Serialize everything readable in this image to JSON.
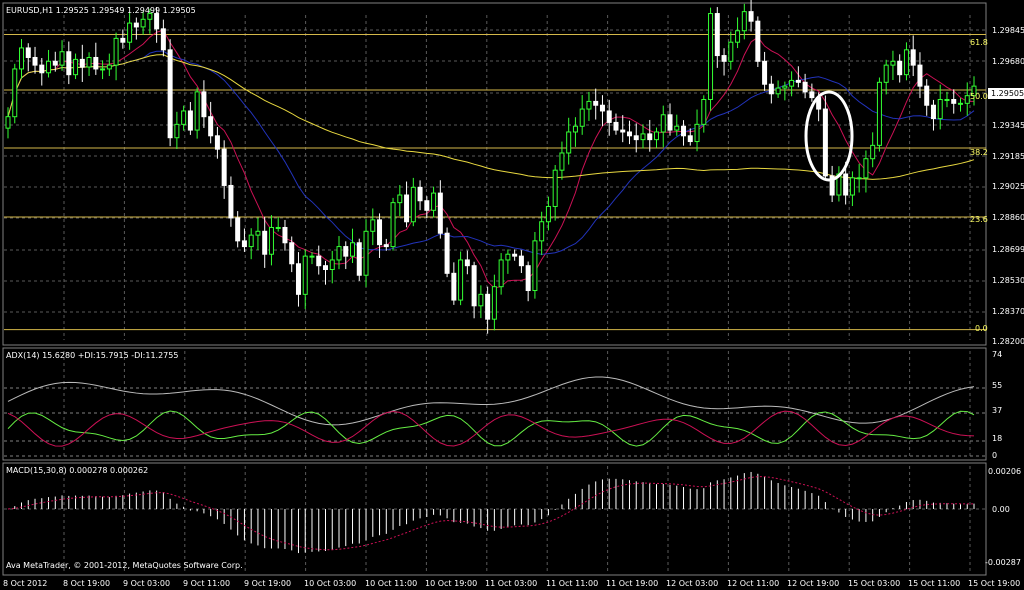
{
  "colors": {
    "background": "#000000",
    "grid": "#5a5a5a",
    "bull_candle": "#33ff33",
    "bear_candle": "#ffffff",
    "fib": "#d4b84a",
    "ma_fast": "#cc1155",
    "ma_mid": "#2233bb",
    "ma_slow": "#e8d840",
    "adx_main": "#bbbbbb",
    "plus_di": "#66ee44",
    "minus_di": "#cc1155",
    "adx_levels": "#808080",
    "macd_hist": "#ffffff",
    "macd_signal": "#cc1155",
    "marker": "#ffffff"
  },
  "main": {
    "header": "EURUSD,H1  1.29525 1.29549 1.29499 1.29505",
    "current_price": "1.29505",
    "price_labels": [
      "1.29845",
      "1.29680",
      "1.29505",
      "1.29345",
      "1.29185",
      "1.29025",
      "1.28860",
      "1.28699",
      "1.28530",
      "1.28370",
      "1.28200"
    ],
    "fib_labels": [
      {
        "label": "61.8",
        "price": 1.2978
      },
      {
        "label": "50.0",
        "price": 1.2949
      },
      {
        "label": "38.2",
        "price": 1.29186
      },
      {
        "label": "23.6",
        "price": 1.28825
      },
      {
        "label": "0.0",
        "price": 1.28235
      }
    ]
  },
  "adx": {
    "header": "ADX(14) 15.6280 +DI:15.7915 -DI:11.2755",
    "levels": [
      "74",
      "55",
      "37",
      "18",
      "0"
    ]
  },
  "macd": {
    "header": "MACD(15,30,8) 0.000278 0.000262",
    "levels": [
      "0.00206",
      "0.00",
      "-0.00287"
    ]
  },
  "time_labels": [
    "8 Oct 2012",
    "8 Oct 19:00",
    "9 Oct 03:00",
    "9 Oct 11:00",
    "9 Oct 19:00",
    "10 Oct 03:00",
    "10 Oct 11:00",
    "10 Oct 19:00",
    "11 Oct 03:00",
    "11 Oct 11:00",
    "11 Oct 19:00",
    "12 Oct 03:00",
    "12 Oct 11:00",
    "12 Oct 19:00",
    "15 Oct 03:00",
    "15 Oct 11:00",
    "15 Oct 19:00"
  ],
  "watermark": "Ava MetaTrader, © 2001-2012, MetaQuotes Software Corp.",
  "chart_data": {
    "type": "candlestick",
    "symbol": "EURUSD",
    "timeframe": "H1",
    "ylim": [
      1.2816,
      1.2994
    ],
    "closes": [
      1.2935,
      1.296,
      1.2971,
      1.2966,
      1.2962,
      1.2958,
      1.2964,
      1.2962,
      1.2969,
      1.2957,
      1.2965,
      1.2961,
      1.2966,
      1.296,
      1.296,
      1.2962,
      1.2976,
      1.2974,
      1.2984,
      1.2982,
      1.2986,
      1.2989,
      1.2981,
      1.297,
      1.2924,
      1.2931,
      1.2938,
      1.2928,
      1.2948,
      1.2935,
      1.2925,
      1.2918,
      1.2899,
      1.2882,
      1.287,
      1.2867,
      1.2873,
      1.2875,
      1.2863,
      1.2877,
      1.2877,
      1.2869,
      1.2858,
      1.2842,
      1.2862,
      1.2862,
      1.2857,
      1.2855,
      1.286,
      1.2867,
      1.2862,
      1.2869,
      1.2852,
      1.2875,
      1.2881,
      1.2868,
      1.2867,
      1.289,
      1.2894,
      1.288,
      1.2898,
      1.2891,
      1.2886,
      1.2895,
      1.2874,
      1.2853,
      1.2839,
      1.286,
      1.2857,
      1.2836,
      1.2842,
      1.2829,
      1.2846,
      1.286,
      1.2863,
      1.2862,
      1.2857,
      1.2844,
      1.287,
      1.288,
      1.2888,
      1.2907,
      1.2916,
      1.2927,
      1.293,
      1.2939,
      1.2943,
      1.2941,
      1.2938,
      1.2932,
      1.2928,
      1.2927,
      1.2925,
      1.2923,
      1.2926,
      1.2923,
      1.2927,
      1.2936,
      1.2928,
      1.293,
      1.2925,
      1.2922,
      1.2931,
      1.2944,
      1.2989,
      1.2967,
      1.2964,
      1.2974,
      1.298,
      1.299,
      1.2985,
      1.2964,
      1.2952,
      1.2947,
      1.295,
      1.2951,
      1.2954,
      1.2953,
      1.2948,
      1.2945,
      1.2939,
      1.2904,
      1.2894,
      1.2905,
      1.2894,
      1.2903,
      1.2903,
      1.2913,
      1.292,
      1.2953,
      1.2962,
      1.2964,
      1.2957,
      1.297,
      1.2962,
      1.2951,
      1.2941,
      1.2934,
      1.2944,
      1.2944,
      1.2942,
      1.2942,
      1.2946,
      1.2951
    ]
  }
}
